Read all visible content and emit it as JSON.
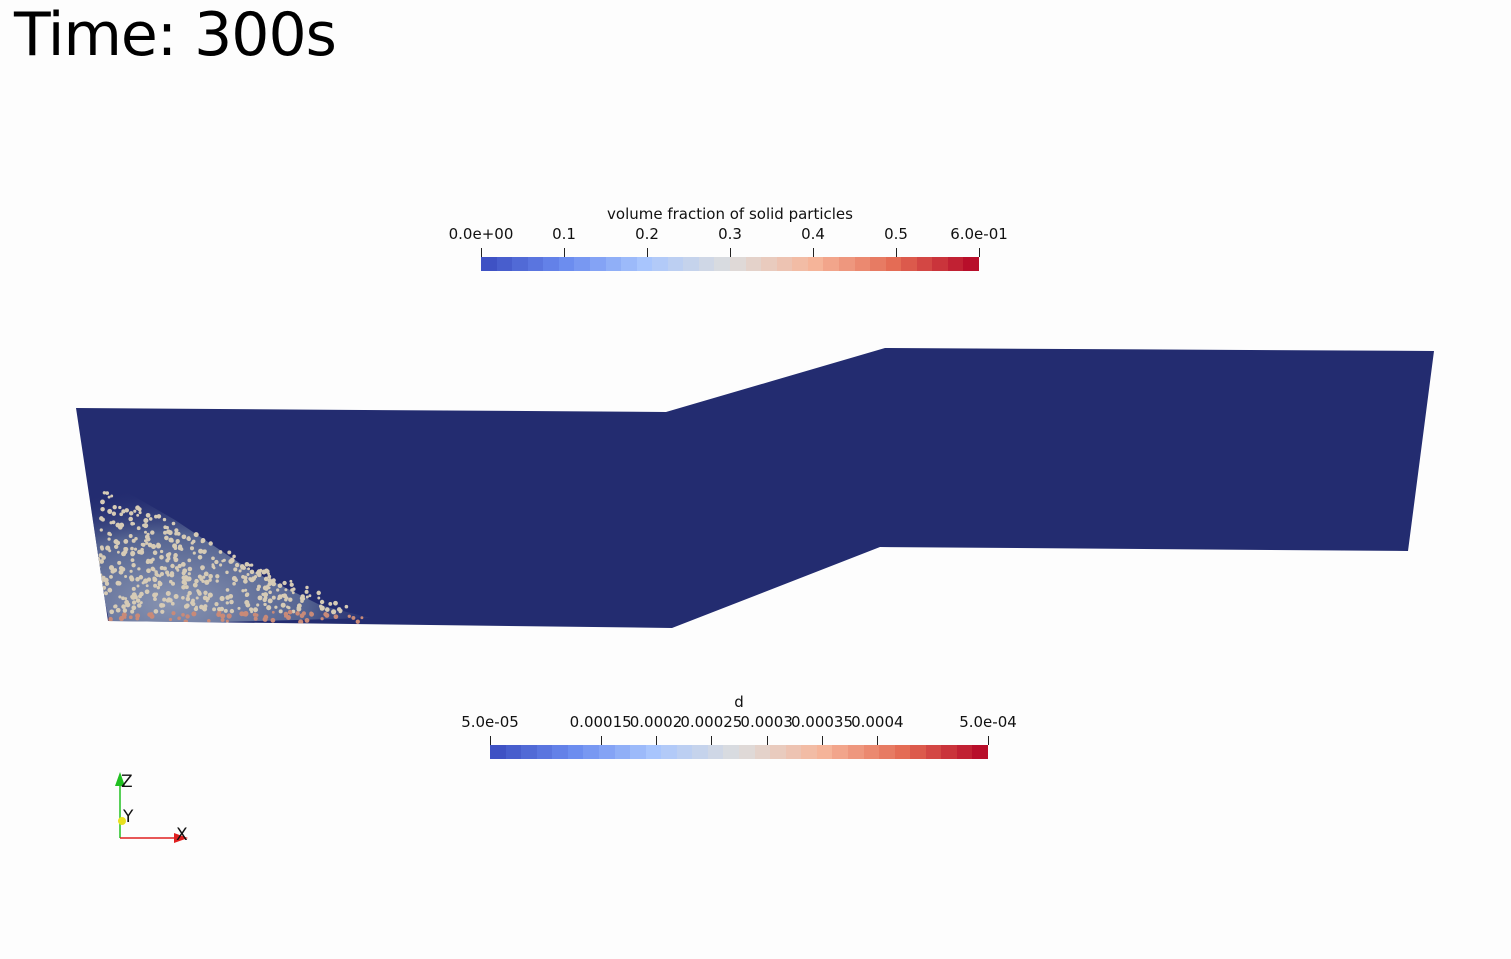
{
  "time_annotation": "Time: 300s",
  "colorbar_volume_fraction": {
    "title": "volume fraction of solid particles",
    "range": [
      0.0,
      0.6
    ],
    "ticks": [
      {
        "value": 0.0,
        "label": "0.0e+00"
      },
      {
        "value": 0.1,
        "label": "0.1"
      },
      {
        "value": 0.2,
        "label": "0.2"
      },
      {
        "value": 0.3,
        "label": "0.3"
      },
      {
        "value": 0.4,
        "label": "0.4"
      },
      {
        "value": 0.5,
        "label": "0.5"
      },
      {
        "value": 0.6,
        "label": "6.0e-01"
      }
    ]
  },
  "colorbar_diameter": {
    "title": "d",
    "range": [
      5e-05,
      0.0005
    ],
    "ticks": [
      {
        "value": 5e-05,
        "label": "5.0e-05"
      },
      {
        "value": 0.00015,
        "label": "0.00015"
      },
      {
        "value": 0.0002,
        "label": "0.0002"
      },
      {
        "value": 0.00025,
        "label": "0.00025"
      },
      {
        "value": 0.0003,
        "label": "0.0003"
      },
      {
        "value": 0.00035,
        "label": "0.00035"
      },
      {
        "value": 0.0004,
        "label": "0.0004"
      },
      {
        "value": 0.0005,
        "label": "5.0e-04"
      }
    ]
  },
  "colormap": [
    "#3b4cc0",
    "#6a8bef",
    "#aac7fd",
    "#dddddd",
    "#f6b69b",
    "#e36a53",
    "#b40426"
  ],
  "domain_color": "#232c70",
  "particle_color": "#d6cbb6",
  "axes_triad": {
    "z": "Z",
    "y": "Y",
    "x": "X"
  },
  "axis_colors": {
    "x": "#e02020",
    "y": "#e8e020",
    "z": "#20c020"
  }
}
